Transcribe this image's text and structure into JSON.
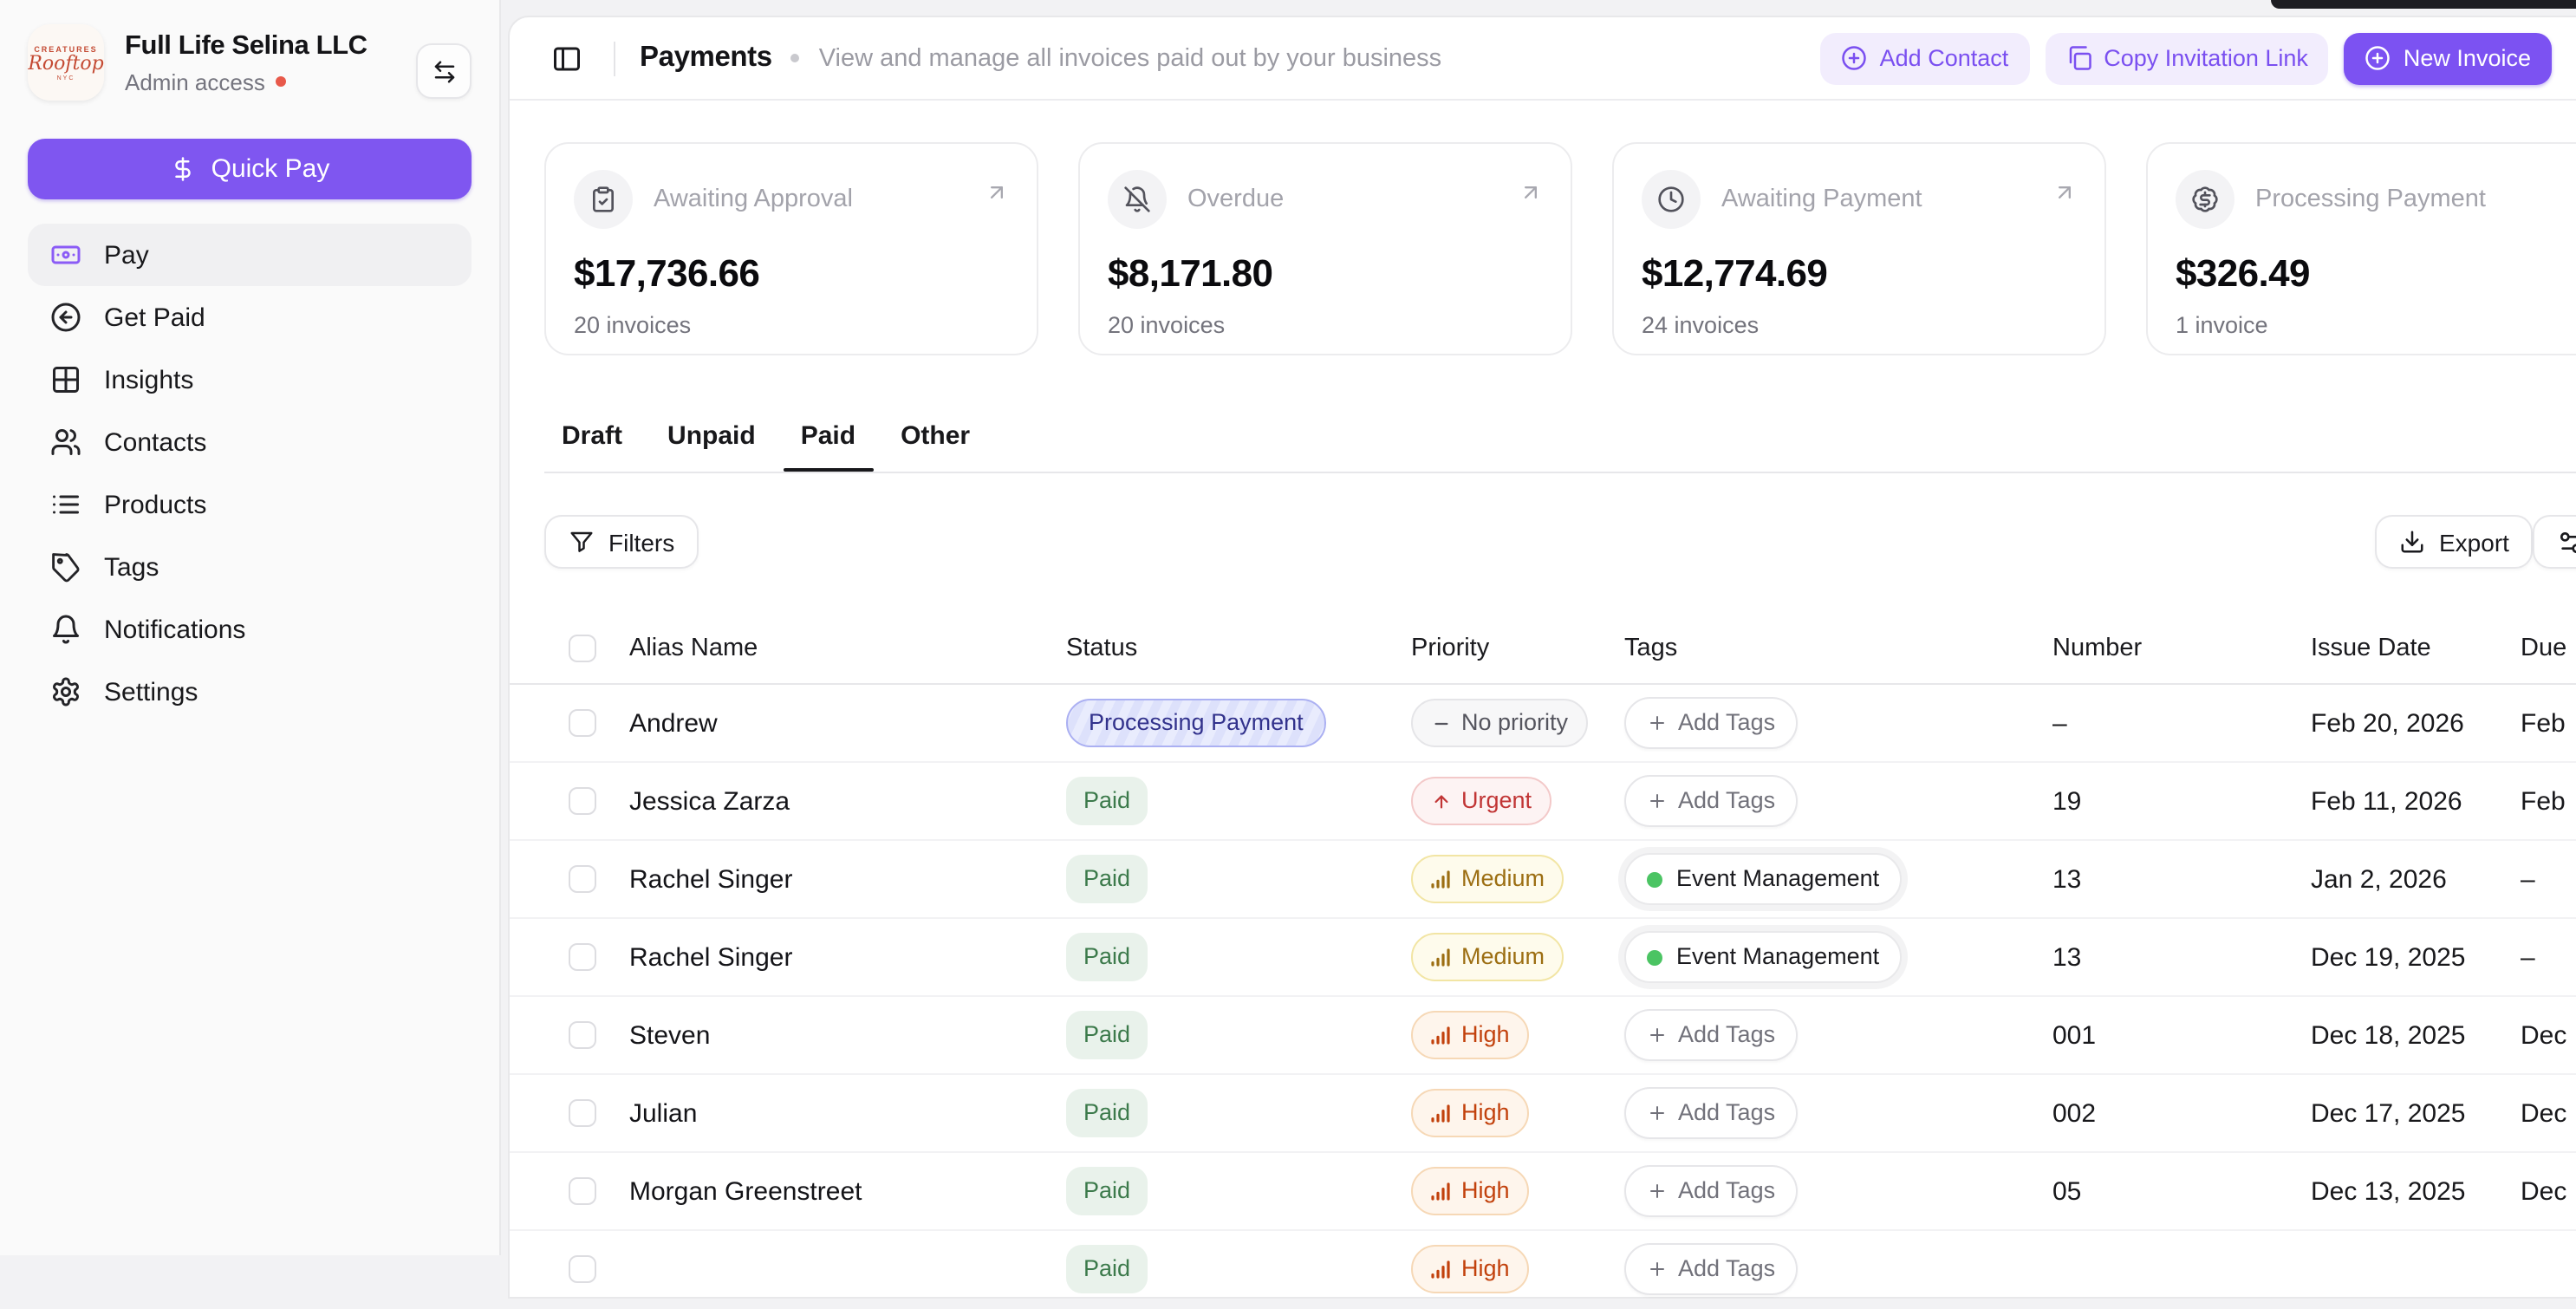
{
  "org": {
    "name": "Full Life Selina LLC",
    "role": "Admin access",
    "logo_line1": "CREATURES",
    "logo_line2": "Rooftop",
    "logo_line3": "NYC"
  },
  "sidebar": {
    "quick_pay_label": "Quick Pay",
    "items": [
      {
        "label": "Pay",
        "icon": "banknote-icon",
        "active": true
      },
      {
        "label": "Get Paid",
        "icon": "circle-arrow-left-icon",
        "active": false
      },
      {
        "label": "Insights",
        "icon": "grid-icon",
        "active": false
      },
      {
        "label": "Contacts",
        "icon": "users-icon",
        "active": false
      },
      {
        "label": "Products",
        "icon": "list-icon",
        "active": false
      },
      {
        "label": "Tags",
        "icon": "tag-icon",
        "active": false
      },
      {
        "label": "Notifications",
        "icon": "bell-icon",
        "active": false
      },
      {
        "label": "Settings",
        "icon": "gear-icon",
        "active": false
      }
    ]
  },
  "header": {
    "title": "Payments",
    "subtitle": "View and manage all invoices paid out by your business",
    "actions": {
      "add_contact": "Add Contact",
      "copy_invitation_link": "Copy Invitation Link",
      "new_invoice": "New Invoice"
    }
  },
  "stats_cards": [
    {
      "title": "Awaiting Approval",
      "icon": "clipboard-check-icon",
      "amount": "$17,736.66",
      "count": "20 invoices"
    },
    {
      "title": "Overdue",
      "icon": "bell-off-icon",
      "amount": "$8,171.80",
      "count": "20 invoices"
    },
    {
      "title": "Awaiting Payment",
      "icon": "clock-icon",
      "amount": "$12,774.69",
      "count": "24 invoices"
    },
    {
      "title": "Processing Payment",
      "icon": "badge-dollar-icon",
      "amount": "$326.49",
      "count": "1 invoice"
    }
  ],
  "tabs": {
    "items": [
      "Draft",
      "Unpaid",
      "Paid",
      "Other"
    ],
    "active": "Paid"
  },
  "toolbar": {
    "filters_label": "Filters",
    "export_label": "Export"
  },
  "table": {
    "columns": [
      "Alias Name",
      "Status",
      "Priority",
      "Tags",
      "Number",
      "Issue Date",
      "Due"
    ],
    "rows": [
      {
        "alias": "Andrew",
        "status": {
          "label": "Processing Payment",
          "type": "processing"
        },
        "priority": {
          "label": "No priority",
          "type": "none"
        },
        "tags": {
          "type": "add",
          "label": "Add Tags"
        },
        "number": "–",
        "issue_date": "Feb 20, 2026",
        "due": "Feb",
        "partial": false
      },
      {
        "alias": "Jessica Zarza",
        "status": {
          "label": "Paid",
          "type": "paid"
        },
        "priority": {
          "label": "Urgent",
          "type": "urgent"
        },
        "tags": {
          "type": "add",
          "label": "Add Tags"
        },
        "number": "19",
        "issue_date": "Feb 11, 2026",
        "due": "Feb",
        "partial": false
      },
      {
        "alias": "Rachel Singer",
        "status": {
          "label": "Paid",
          "type": "paid"
        },
        "priority": {
          "label": "Medium",
          "type": "medium"
        },
        "tags": {
          "type": "tag",
          "label": "Event Management"
        },
        "number": "13",
        "issue_date": "Jan 2, 2026",
        "due": "–",
        "partial": false
      },
      {
        "alias": "Rachel Singer",
        "status": {
          "label": "Paid",
          "type": "paid"
        },
        "priority": {
          "label": "Medium",
          "type": "medium"
        },
        "tags": {
          "type": "tag",
          "label": "Event Management"
        },
        "number": "13",
        "issue_date": "Dec 19, 2025",
        "due": "–",
        "partial": false
      },
      {
        "alias": "Steven",
        "status": {
          "label": "Paid",
          "type": "paid"
        },
        "priority": {
          "label": "High",
          "type": "high"
        },
        "tags": {
          "type": "add",
          "label": "Add Tags"
        },
        "number": "001",
        "issue_date": "Dec 18, 2025",
        "due": "Dec",
        "partial": false
      },
      {
        "alias": "Julian",
        "status": {
          "label": "Paid",
          "type": "paid"
        },
        "priority": {
          "label": "High",
          "type": "high"
        },
        "tags": {
          "type": "add",
          "label": "Add Tags"
        },
        "number": "002",
        "issue_date": "Dec 17, 2025",
        "due": "Dec",
        "partial": false
      },
      {
        "alias": "Morgan Greenstreet",
        "status": {
          "label": "Paid",
          "type": "paid"
        },
        "priority": {
          "label": "High",
          "type": "high"
        },
        "tags": {
          "type": "add",
          "label": "Add Tags"
        },
        "number": "05",
        "issue_date": "Dec 13, 2025",
        "due": "Dec",
        "partial": false
      },
      {
        "alias": "",
        "status": {
          "label": "Paid",
          "type": "paid"
        },
        "priority": {
          "label": "High",
          "type": "high"
        },
        "tags": {
          "type": "add",
          "label": "Add Tags"
        },
        "number": "",
        "issue_date": "",
        "due": "",
        "partial": true
      }
    ]
  },
  "colors": {
    "primary": "#7C52F2",
    "primary_soft_bg": "#F2EDFD",
    "paid_bg": "#E9F2EB",
    "paid_text": "#3C7A4B",
    "processing_border": "#ABB0F2",
    "processing_text": "#32328C",
    "urgent_text": "#C13535",
    "medium_text": "#9C6E12",
    "high_text": "#C2410C",
    "tag_dot": "#4BC463",
    "admin_dot": "#E8594A",
    "sidebar_bg": "#FAFAFA"
  }
}
